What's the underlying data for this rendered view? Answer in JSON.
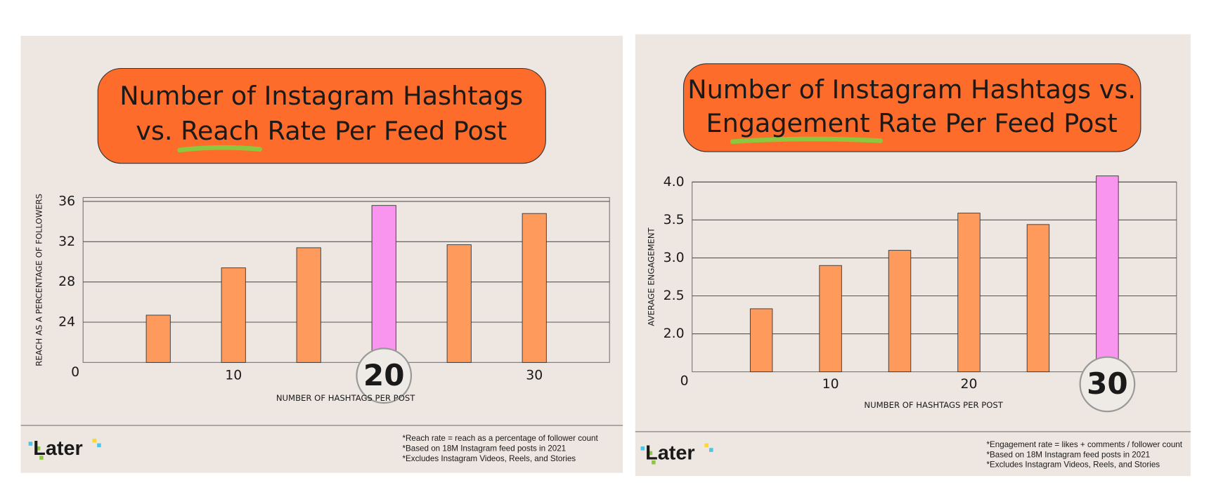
{
  "chart_data": [
    {
      "type": "bar",
      "title_lines": [
        "Number of Instagram Hashtags",
        "vs. Reach Rate Per Feed Post"
      ],
      "x": [
        5,
        10,
        15,
        20,
        25,
        30
      ],
      "values": [
        24.7,
        29.4,
        31.4,
        35.6,
        31.7,
        34.8
      ],
      "color": "#fd9a5c",
      "highlight_color": "#f994ef",
      "highlight_x": 20,
      "xlim": [
        0,
        35
      ],
      "xticks": [
        0,
        10,
        20,
        30
      ],
      "ylim": [
        20,
        36
      ],
      "yticks": [
        24,
        28,
        32,
        36
      ],
      "grid": true,
      "xlabel": "NUMBER OF HASHTAGS PER POST",
      "ylabel": "REACH AS A PERCENTAGE OF FOLLOWERS",
      "footnotes": [
        "*Reach rate = reach as a percentage of follower count",
        "*Based on 18M Instagram feed posts in 2021",
        "*Excludes Instagram Videos, Reels, and Stories"
      ],
      "logo": "Later"
    },
    {
      "type": "bar",
      "title_lines": [
        "Number of Instagram Hashtags vs.",
        "Engagement Rate Per Feed Post"
      ],
      "x": [
        5,
        10,
        15,
        20,
        25,
        30
      ],
      "values": [
        2.33,
        2.9,
        3.1,
        3.59,
        3.44,
        4.08
      ],
      "color": "#fd9a5c",
      "highlight_color": "#f994ef",
      "highlight_x": 30,
      "xlim": [
        0,
        35
      ],
      "xticks": [
        0,
        10,
        20,
        30
      ],
      "ylim": [
        1.5,
        4.0
      ],
      "yticks": [
        {
          "value": 2,
          "label": "2.0"
        },
        2.5,
        {
          "value": 3,
          "label": "3.0"
        },
        3.5,
        {
          "value": 4,
          "label": "4.0"
        }
      ],
      "grid": true,
      "xlabel": "NUMBER OF HASHTAGS PER POST",
      "ylabel": "AVERAGE ENGAGEMENT",
      "footnotes": [
        "*Engagement rate = likes + comments / follower count",
        "*Based on 18M Instagram feed posts in 2021",
        "*Excludes Instagram Videos, Reels, and Stories"
      ],
      "logo": "Later"
    }
  ]
}
